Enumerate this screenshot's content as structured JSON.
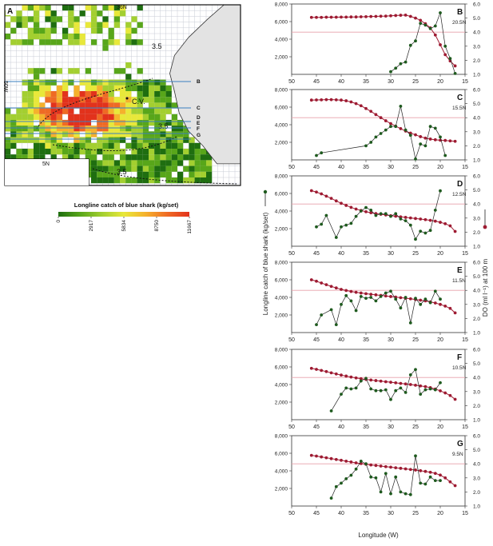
{
  "map": {
    "panel_label": "A",
    "lat_top_label": "36N",
    "lat_bottom_label": "5N",
    "lon_label": "50W",
    "island_label": "C.V.",
    "contour_values": [
      "3.5",
      "3.5",
      "3.5"
    ],
    "transect_labels": [
      "B",
      "C",
      "D",
      "E",
      "F",
      "G"
    ],
    "colorbar_title": "Longline catch of blue shark (kg/set)",
    "colorbar_ticks": [
      "0",
      "2917",
      "5834",
      "8750",
      "11667"
    ],
    "colorbar_colors": [
      "#1f6e10",
      "#58a61a",
      "#a3cf30",
      "#e8e83a",
      "#f5b12c",
      "#ef6a24",
      "#e2321c"
    ]
  },
  "colors": {
    "catch_series": "#1e5a1e",
    "do_series": "#9e1b32",
    "reference_line": "#e8a0aa",
    "land": "#e3e3e3",
    "grid": "#c9ccd6"
  },
  "legend": {
    "left_axis_title": "Longline catch of blue shark (kg/set)",
    "right_axis_title": "DO (ml l⁻¹) at 100 m"
  },
  "chart_data": [
    {
      "panel": "B",
      "lat": "20.5N",
      "type": "line",
      "xlabel": "Longitude (W)",
      "xlim": [
        50,
        15
      ],
      "ylim": [
        0,
        8000
      ],
      "y2lim": [
        1,
        6
      ],
      "x_ticks": [
        "50",
        "45",
        "40",
        "35",
        "30",
        "25",
        "20",
        "15"
      ],
      "y_ticks": [
        "2,000",
        "4,000",
        "6,000",
        "8,000"
      ],
      "y2_ticks": [
        "1.0",
        "2.0",
        "3.0",
        "4.0",
        "5.0",
        "6.0"
      ],
      "reference_do": 4.0,
      "do_x": [
        46,
        45,
        44,
        43,
        42,
        41,
        40,
        39,
        38,
        37,
        36,
        35,
        34,
        33,
        32,
        31,
        30,
        29,
        28,
        27,
        26,
        25,
        24,
        23,
        22,
        21,
        20,
        19,
        18,
        17
      ],
      "do_y": [
        5.05,
        5.05,
        5.05,
        5.06,
        5.06,
        5.06,
        5.07,
        5.07,
        5.08,
        5.08,
        5.09,
        5.1,
        5.11,
        5.12,
        5.13,
        5.14,
        5.16,
        5.18,
        5.2,
        5.21,
        5.12,
        5.0,
        4.84,
        4.6,
        4.3,
        3.8,
        3.1,
        2.4,
        1.95,
        1.6
      ],
      "catch_x": [
        30,
        29,
        28,
        27,
        26,
        25,
        24,
        23,
        22,
        21,
        20,
        19,
        18,
        17
      ],
      "catch_y": [
        300,
        700,
        1200,
        1400,
        3300,
        3800,
        5800,
        5600,
        5200,
        5500,
        7000,
        3200,
        1800,
        100
      ]
    },
    {
      "panel": "C",
      "lat": "15.5N",
      "type": "line",
      "xlabel": "Longitude (W)",
      "xlim": [
        50,
        15
      ],
      "ylim": [
        0,
        8000
      ],
      "y2lim": [
        1,
        6
      ],
      "x_ticks": [
        "50",
        "45",
        "40",
        "35",
        "30",
        "25",
        "20",
        "15"
      ],
      "y_ticks": [
        "2,000",
        "4,000",
        "6,000",
        "8,000"
      ],
      "y2_ticks": [
        "1.0",
        "2.0",
        "3.0",
        "4.0",
        "5.0",
        "6.0"
      ],
      "reference_do": 4.0,
      "do_x": [
        46,
        45,
        44,
        43,
        42,
        41,
        40,
        39,
        38,
        37,
        36,
        35,
        34,
        33,
        32,
        31,
        30,
        29,
        28,
        27,
        26,
        25,
        24,
        23,
        22,
        21,
        20,
        19,
        18,
        17
      ],
      "do_y": [
        5.25,
        5.26,
        5.27,
        5.28,
        5.28,
        5.27,
        5.25,
        5.2,
        5.12,
        5.0,
        4.85,
        4.65,
        4.45,
        4.22,
        4.0,
        3.78,
        3.58,
        3.4,
        3.22,
        3.05,
        2.9,
        2.78,
        2.65,
        2.55,
        2.48,
        2.43,
        2.4,
        2.38,
        2.35,
        2.32
      ],
      "catch_x": [
        45,
        44,
        35,
        34,
        33,
        32,
        31,
        30,
        29,
        28,
        27,
        26,
        25,
        24,
        23,
        22,
        21,
        20,
        19
      ],
      "catch_y": [
        500,
        800,
        1600,
        2000,
        2600,
        3000,
        3400,
        3800,
        3800,
        6100,
        3400,
        2800,
        100,
        1800,
        1600,
        3800,
        3600,
        2600,
        500
      ]
    },
    {
      "panel": "D",
      "lat": "12.5N",
      "type": "line",
      "xlabel": "Longitude (W)",
      "xlim": [
        50,
        15
      ],
      "ylim": [
        0,
        8000
      ],
      "y2lim": [
        1,
        6
      ],
      "x_ticks": [
        "50",
        "45",
        "40",
        "35",
        "30",
        "25",
        "20",
        "15"
      ],
      "y_ticks": [
        "2,000",
        "4,000",
        "6,000",
        "8,000"
      ],
      "y2_ticks": [
        "1.0",
        "2.0",
        "3.0",
        "4.0",
        "5.0",
        "6.0"
      ],
      "reference_do": 4.0,
      "do_x": [
        46,
        45,
        44,
        43,
        42,
        41,
        40,
        39,
        38,
        37,
        36,
        35,
        34,
        33,
        32,
        31,
        30,
        29,
        28,
        27,
        26,
        25,
        24,
        23,
        22,
        21,
        20,
        19,
        18,
        17
      ],
      "do_y": [
        4.95,
        4.85,
        4.72,
        4.56,
        4.4,
        4.22,
        4.05,
        3.9,
        3.76,
        3.64,
        3.54,
        3.45,
        3.38,
        3.32,
        3.27,
        3.22,
        3.17,
        3.13,
        3.09,
        3.05,
        3.01,
        2.97,
        2.93,
        2.89,
        2.84,
        2.78,
        2.7,
        2.6,
        2.45,
        2.05
      ],
      "catch_x": [
        45,
        44,
        43,
        41,
        40,
        39,
        38,
        37,
        36,
        35,
        34,
        33,
        32,
        31,
        30,
        29,
        28,
        27,
        26,
        25,
        24,
        23,
        22,
        21,
        20
      ],
      "catch_y": [
        2200,
        2500,
        3500,
        1000,
        2200,
        2400,
        2600,
        3400,
        4000,
        4400,
        4100,
        3500,
        3700,
        3700,
        3400,
        3700,
        3100,
        2900,
        2400,
        800,
        1700,
        1500,
        1800,
        4100,
        6300
      ]
    },
    {
      "panel": "E",
      "lat": "11.5N",
      "type": "line",
      "xlabel": "Longitude (W)",
      "xlim": [
        50,
        15
      ],
      "ylim": [
        0,
        8000
      ],
      "y2lim": [
        1,
        6
      ],
      "x_ticks": [
        "50",
        "45",
        "40",
        "35",
        "30",
        "25",
        "20",
        "15"
      ],
      "y_ticks": [
        "2,000",
        "4,000",
        "6,000",
        "8,000"
      ],
      "y2_ticks": [
        "1.0",
        "2.0",
        "3.0",
        "4.0",
        "5.0",
        "6.0"
      ],
      "reference_do": 4.0,
      "do_x": [
        46,
        45,
        44,
        43,
        42,
        41,
        40,
        39,
        38,
        37,
        36,
        35,
        34,
        33,
        32,
        31,
        30,
        29,
        28,
        27,
        26,
        25,
        24,
        23,
        22,
        21,
        20,
        19,
        18,
        17
      ],
      "do_y": [
        4.75,
        4.65,
        4.52,
        4.4,
        4.28,
        4.17,
        4.07,
        3.99,
        3.92,
        3.86,
        3.81,
        3.76,
        3.72,
        3.68,
        3.64,
        3.6,
        3.56,
        3.52,
        3.48,
        3.44,
        3.4,
        3.35,
        3.3,
        3.25,
        3.18,
        3.1,
        3.0,
        2.88,
        2.72,
        2.4
      ],
      "catch_x": [
        45,
        44,
        42,
        41,
        40,
        39,
        38,
        37,
        36,
        35,
        34,
        33,
        32,
        31,
        30,
        29,
        28,
        27,
        26,
        25,
        24,
        23,
        22,
        21,
        20
      ],
      "catch_y": [
        900,
        2000,
        2600,
        900,
        3200,
        4200,
        3600,
        2500,
        4100,
        3900,
        4000,
        3600,
        4100,
        4500,
        4700,
        3800,
        2800,
        4000,
        1100,
        3900,
        3200,
        3800,
        3400,
        4700,
        3800
      ]
    },
    {
      "panel": "F",
      "lat": "10.5N",
      "type": "line",
      "xlabel": "Longitude (W)",
      "xlim": [
        50,
        15
      ],
      "ylim": [
        0,
        8000
      ],
      "y2lim": [
        1,
        6
      ],
      "x_ticks": [
        "50",
        "45",
        "40",
        "35",
        "30",
        "25",
        "20",
        "15"
      ],
      "y_ticks": [
        "2,000",
        "4,000",
        "6,000",
        "8,000"
      ],
      "y2_ticks": [
        "1.0",
        "2.0",
        "3.0",
        "4.0",
        "5.0",
        "6.0"
      ],
      "reference_do": 4.0,
      "do_x": [
        46,
        45,
        44,
        43,
        42,
        41,
        40,
        39,
        38,
        37,
        36,
        35,
        34,
        33,
        32,
        31,
        30,
        29,
        28,
        27,
        26,
        25,
        24,
        23,
        22,
        21,
        20,
        19,
        18,
        17
      ],
      "do_y": [
        4.65,
        4.58,
        4.5,
        4.42,
        4.33,
        4.25,
        4.17,
        4.1,
        4.03,
        3.97,
        3.91,
        3.86,
        3.82,
        3.78,
        3.74,
        3.7,
        3.66,
        3.62,
        3.58,
        3.54,
        3.5,
        3.45,
        3.4,
        3.35,
        3.28,
        3.18,
        3.05,
        2.9,
        2.72,
        2.45
      ],
      "catch_x": [
        42,
        40,
        39,
        38,
        37,
        36,
        35,
        34,
        33,
        32,
        31,
        30,
        29,
        28,
        27,
        26,
        25,
        24,
        23,
        22,
        21,
        20
      ],
      "catch_y": [
        1000,
        2900,
        3600,
        3500,
        3600,
        4400,
        4700,
        3500,
        3300,
        3300,
        3400,
        2300,
        3300,
        3600,
        3100,
        5100,
        5700,
        2900,
        3400,
        3500,
        3400,
        4200
      ]
    },
    {
      "panel": "G",
      "lat": "9.5N",
      "type": "line",
      "xlabel": "Longitude (W)",
      "xlim": [
        50,
        15
      ],
      "ylim": [
        0,
        8000
      ],
      "y2lim": [
        1,
        6
      ],
      "x_ticks": [
        "50",
        "45",
        "40",
        "35",
        "30",
        "25",
        "20",
        "15"
      ],
      "y_ticks": [
        "2,000",
        "4,000",
        "6,000",
        "8,000"
      ],
      "y2_ticks": [
        "1.0",
        "2.0",
        "3.0",
        "4.0",
        "5.0",
        "6.0"
      ],
      "reference_do": 4.0,
      "do_x": [
        46,
        45,
        44,
        43,
        42,
        41,
        40,
        39,
        38,
        37,
        36,
        35,
        34,
        33,
        32,
        31,
        30,
        29,
        28,
        27,
        26,
        25,
        24,
        23,
        22,
        21,
        20,
        19,
        18,
        17
      ],
      "do_y": [
        4.6,
        4.55,
        4.49,
        4.43,
        4.37,
        4.31,
        4.25,
        4.19,
        4.13,
        4.07,
        4.02,
        3.97,
        3.92,
        3.88,
        3.84,
        3.8,
        3.76,
        3.72,
        3.68,
        3.64,
        3.6,
        3.56,
        3.51,
        3.46,
        3.4,
        3.32,
        3.2,
        3.0,
        2.72,
        2.45
      ],
      "catch_x": [
        42,
        41,
        40,
        39,
        38,
        37,
        36,
        35,
        34,
        33,
        32,
        31,
        30,
        29,
        28,
        27,
        26,
        25,
        24,
        23,
        22,
        21,
        20
      ],
      "catch_y": [
        900,
        2200,
        2600,
        3100,
        3500,
        4200,
        5100,
        4800,
        3300,
        3200,
        1600,
        3700,
        1400,
        3300,
        1600,
        1400,
        1300,
        5700,
        2600,
        2500,
        3300,
        2900,
        2900
      ]
    }
  ]
}
